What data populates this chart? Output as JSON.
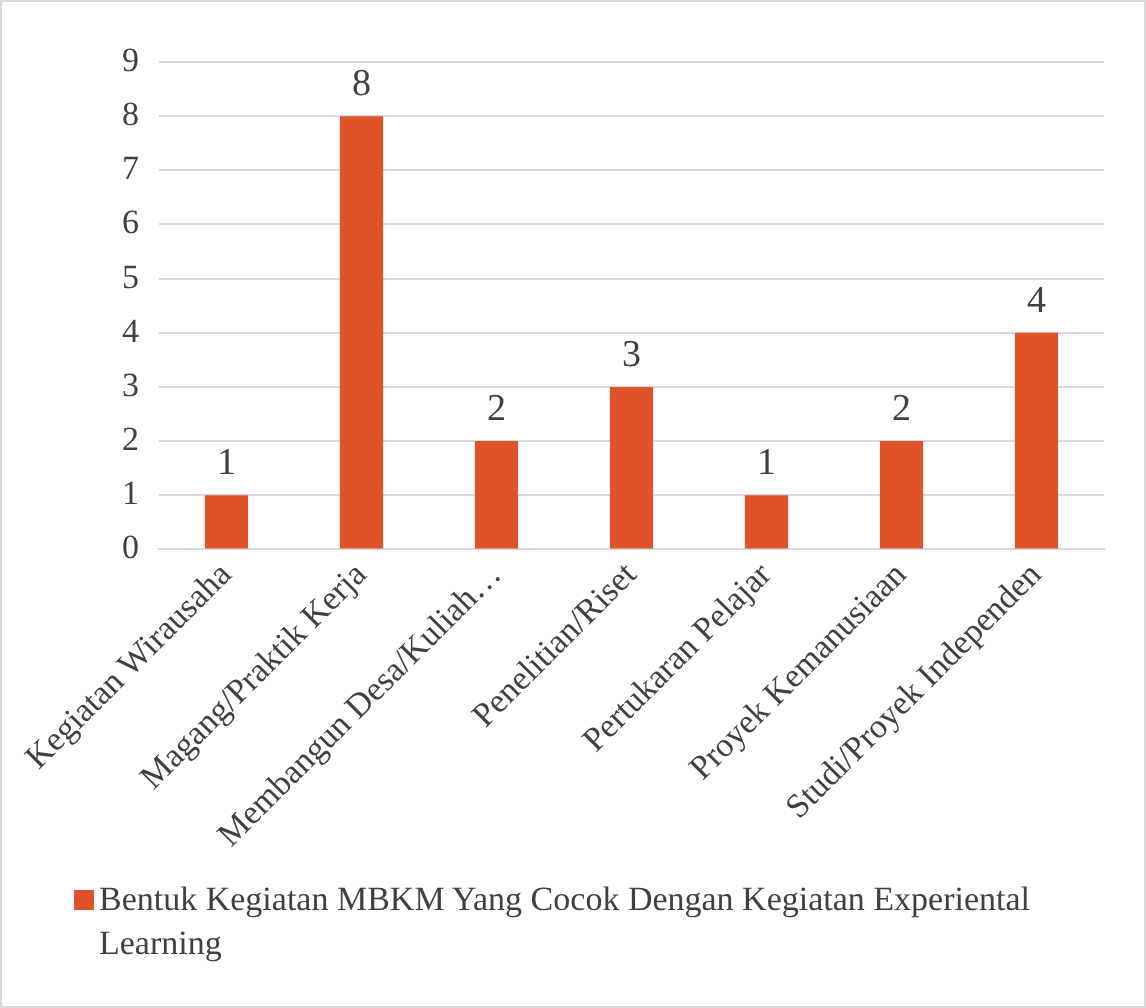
{
  "chart_data": {
    "type": "bar",
    "categories": [
      "Kegiatan Wirausaha",
      "Magang/Praktik Kerja",
      "Membangun Desa/Kuliah…",
      "Penelitian/Riset",
      "Pertukaran Pelajar",
      "Proyek Kemanusiaan",
      "Studi/Proyek Independen"
    ],
    "series": [
      {
        "name": "Bentuk Kegiatan MBKM Yang Cocok Dengan Kegiatan Experiental Learning",
        "color": "#e0522a",
        "values": [
          1,
          8,
          2,
          3,
          1,
          2,
          4
        ]
      }
    ],
    "ylim": [
      0,
      9
    ],
    "yticks": [
      0,
      1,
      2,
      3,
      4,
      5,
      6,
      7,
      8,
      9
    ],
    "grid": "y",
    "legend": "bottom",
    "data_labels": true
  }
}
